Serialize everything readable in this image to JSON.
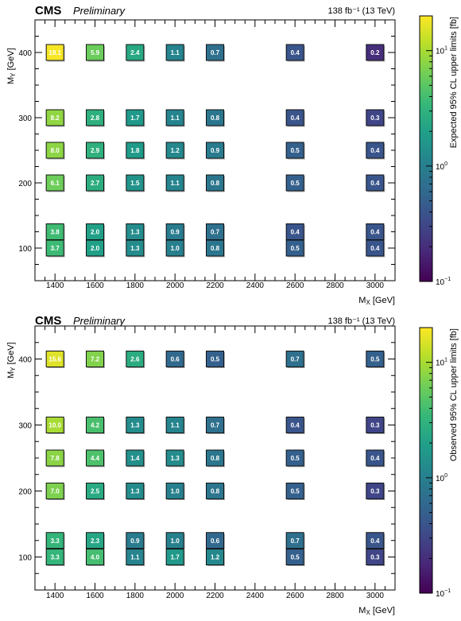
{
  "colors": {
    "viridis": [
      "#440154",
      "#482878",
      "#3e4a89",
      "#31688e",
      "#26828e",
      "#1f9e89",
      "#35b779",
      "#6ece58",
      "#b5de2b",
      "#fde725"
    ]
  },
  "chart_data": [
    {
      "type": "heatmap",
      "cms_label": "CMS",
      "prelim_label": "Preliminary",
      "lumi_label": "138 fb⁻¹ (13 TeV)",
      "xlabel": "M_X [GeV]",
      "ylabel": "M_Y [GeV]",
      "xlabel_main": "M",
      "xlabel_sub": "X",
      "xlabel_unit": " [GeV]",
      "ylabel_main": "M",
      "ylabel_sub": "Y",
      "ylabel_unit": " [GeV]",
      "xlim": [
        1300,
        3100
      ],
      "ylim": [
        50,
        450
      ],
      "xticks": [
        1400,
        1600,
        1800,
        2000,
        2200,
        2400,
        2600,
        2800,
        3000
      ],
      "yticks": [
        100,
        200,
        300,
        400
      ],
      "colorbar_title": "Expected 95% CL upper limits [fb]",
      "colorbar_log": true,
      "colorbar_range": [
        0.1,
        20
      ],
      "colorbar_ticks": [
        {
          "value": 10,
          "base": "10",
          "exp": "1"
        },
        {
          "value": 1,
          "base": "10",
          "exp": "0"
        },
        {
          "value": 0.1,
          "base": "10",
          "exp": "−1"
        }
      ],
      "points": [
        {
          "x": 1400,
          "y": 400,
          "value": 19.1,
          "label": "19.1"
        },
        {
          "x": 1600,
          "y": 400,
          "value": 5.9,
          "label": "5.9"
        },
        {
          "x": 1800,
          "y": 400,
          "value": 2.4,
          "label": "2.4"
        },
        {
          "x": 2000,
          "y": 400,
          "value": 1.1,
          "label": "1.1"
        },
        {
          "x": 2200,
          "y": 400,
          "value": 0.7,
          "label": "0.7"
        },
        {
          "x": 2600,
          "y": 400,
          "value": 0.4,
          "label": "0.4"
        },
        {
          "x": 3000,
          "y": 400,
          "value": 0.2,
          "label": "0.2"
        },
        {
          "x": 1400,
          "y": 300,
          "value": 8.2,
          "label": "8.2"
        },
        {
          "x": 1600,
          "y": 300,
          "value": 2.8,
          "label": "2.8"
        },
        {
          "x": 1800,
          "y": 300,
          "value": 1.7,
          "label": "1.7"
        },
        {
          "x": 2000,
          "y": 300,
          "value": 1.1,
          "label": "1.1"
        },
        {
          "x": 2200,
          "y": 300,
          "value": 0.8,
          "label": "0.8"
        },
        {
          "x": 2600,
          "y": 300,
          "value": 0.4,
          "label": "0.4"
        },
        {
          "x": 3000,
          "y": 300,
          "value": 0.3,
          "label": "0.3"
        },
        {
          "x": 1400,
          "y": 250,
          "value": 8.0,
          "label": "8.0"
        },
        {
          "x": 1600,
          "y": 250,
          "value": 2.9,
          "label": "2.9"
        },
        {
          "x": 1800,
          "y": 250,
          "value": 1.8,
          "label": "1.8"
        },
        {
          "x": 2000,
          "y": 250,
          "value": 1.2,
          "label": "1.2"
        },
        {
          "x": 2200,
          "y": 250,
          "value": 0.9,
          "label": "0.9"
        },
        {
          "x": 2600,
          "y": 250,
          "value": 0.5,
          "label": "0.5"
        },
        {
          "x": 3000,
          "y": 250,
          "value": 0.4,
          "label": "0.4"
        },
        {
          "x": 1400,
          "y": 200,
          "value": 6.1,
          "label": "6.1"
        },
        {
          "x": 1600,
          "y": 200,
          "value": 2.7,
          "label": "2.7"
        },
        {
          "x": 1800,
          "y": 200,
          "value": 1.5,
          "label": "1.5"
        },
        {
          "x": 2000,
          "y": 200,
          "value": 1.1,
          "label": "1.1"
        },
        {
          "x": 2200,
          "y": 200,
          "value": 0.8,
          "label": "0.8"
        },
        {
          "x": 2600,
          "y": 200,
          "value": 0.5,
          "label": "0.5"
        },
        {
          "x": 3000,
          "y": 200,
          "value": 0.4,
          "label": "0.4"
        },
        {
          "x": 1400,
          "y": 125,
          "value": 3.8,
          "label": "3.8"
        },
        {
          "x": 1600,
          "y": 125,
          "value": 2.0,
          "label": "2.0"
        },
        {
          "x": 1800,
          "y": 125,
          "value": 1.3,
          "label": "1.3"
        },
        {
          "x": 2000,
          "y": 125,
          "value": 0.9,
          "label": "0.9"
        },
        {
          "x": 2200,
          "y": 125,
          "value": 0.7,
          "label": "0.7"
        },
        {
          "x": 2600,
          "y": 125,
          "value": 0.4,
          "label": "0.4"
        },
        {
          "x": 3000,
          "y": 125,
          "value": 0.4,
          "label": "0.4"
        },
        {
          "x": 1400,
          "y": 100,
          "value": 3.7,
          "label": "3.7"
        },
        {
          "x": 1600,
          "y": 100,
          "value": 2.0,
          "label": "2.0"
        },
        {
          "x": 1800,
          "y": 100,
          "value": 1.3,
          "label": "1.3"
        },
        {
          "x": 2000,
          "y": 100,
          "value": 1.0,
          "label": "1.0"
        },
        {
          "x": 2200,
          "y": 100,
          "value": 0.8,
          "label": "0.8"
        },
        {
          "x": 2600,
          "y": 100,
          "value": 0.5,
          "label": "0.5"
        },
        {
          "x": 3000,
          "y": 100,
          "value": 0.4,
          "label": "0.4"
        }
      ]
    },
    {
      "type": "heatmap",
      "cms_label": "CMS",
      "prelim_label": "Preliminary",
      "lumi_label": "138 fb⁻¹ (13 TeV)",
      "xlabel": "M_X [GeV]",
      "ylabel": "M_Y [GeV]",
      "xlabel_main": "M",
      "xlabel_sub": "X",
      "xlabel_unit": " [GeV]",
      "ylabel_main": "M",
      "ylabel_sub": "Y",
      "ylabel_unit": " [GeV]",
      "xlim": [
        1300,
        3100
      ],
      "ylim": [
        50,
        450
      ],
      "xticks": [
        1400,
        1600,
        1800,
        2000,
        2200,
        2400,
        2600,
        2800,
        3000
      ],
      "yticks": [
        100,
        200,
        300,
        400
      ],
      "colorbar_title": "Observed 95% CL upper limits [fb]",
      "colorbar_log": true,
      "colorbar_range": [
        0.1,
        20
      ],
      "colorbar_ticks": [
        {
          "value": 10,
          "base": "10",
          "exp": "1"
        },
        {
          "value": 1,
          "base": "10",
          "exp": "0"
        },
        {
          "value": 0.1,
          "base": "10",
          "exp": "−1"
        }
      ],
      "points": [
        {
          "x": 1400,
          "y": 400,
          "value": 15.6,
          "label": "15.6"
        },
        {
          "x": 1600,
          "y": 400,
          "value": 7.2,
          "label": "7.2"
        },
        {
          "x": 1800,
          "y": 400,
          "value": 2.6,
          "label": "2.6"
        },
        {
          "x": 2000,
          "y": 400,
          "value": 0.6,
          "label": "0.6"
        },
        {
          "x": 2200,
          "y": 400,
          "value": 0.5,
          "label": "0.5"
        },
        {
          "x": 2600,
          "y": 400,
          "value": 0.7,
          "label": "0.7"
        },
        {
          "x": 3000,
          "y": 400,
          "value": 0.5,
          "label": "0.5"
        },
        {
          "x": 1400,
          "y": 300,
          "value": 10.0,
          "label": "10.0"
        },
        {
          "x": 1600,
          "y": 300,
          "value": 4.2,
          "label": "4.2"
        },
        {
          "x": 1800,
          "y": 300,
          "value": 1.3,
          "label": "1.3"
        },
        {
          "x": 2000,
          "y": 300,
          "value": 1.1,
          "label": "1.1"
        },
        {
          "x": 2200,
          "y": 300,
          "value": 0.7,
          "label": "0.7"
        },
        {
          "x": 2600,
          "y": 300,
          "value": 0.4,
          "label": "0.4"
        },
        {
          "x": 3000,
          "y": 300,
          "value": 0.3,
          "label": "0.3"
        },
        {
          "x": 1400,
          "y": 250,
          "value": 7.8,
          "label": "7.8"
        },
        {
          "x": 1600,
          "y": 250,
          "value": 4.4,
          "label": "4.4"
        },
        {
          "x": 1800,
          "y": 250,
          "value": 1.4,
          "label": "1.4"
        },
        {
          "x": 2000,
          "y": 250,
          "value": 1.3,
          "label": "1.3"
        },
        {
          "x": 2200,
          "y": 250,
          "value": 0.8,
          "label": "0.8"
        },
        {
          "x": 2600,
          "y": 250,
          "value": 0.5,
          "label": "0.5"
        },
        {
          "x": 3000,
          "y": 250,
          "value": 0.4,
          "label": "0.4"
        },
        {
          "x": 1400,
          "y": 200,
          "value": 7.0,
          "label": "7.0"
        },
        {
          "x": 1600,
          "y": 200,
          "value": 2.5,
          "label": "2.5"
        },
        {
          "x": 1800,
          "y": 200,
          "value": 1.3,
          "label": "1.3"
        },
        {
          "x": 2000,
          "y": 200,
          "value": 1.0,
          "label": "1.0"
        },
        {
          "x": 2200,
          "y": 200,
          "value": 0.8,
          "label": "0.8"
        },
        {
          "x": 2600,
          "y": 200,
          "value": 0.5,
          "label": "0.5"
        },
        {
          "x": 3000,
          "y": 200,
          "value": 0.3,
          "label": "0.3"
        },
        {
          "x": 1400,
          "y": 125,
          "value": 3.3,
          "label": "3.3"
        },
        {
          "x": 1600,
          "y": 125,
          "value": 2.3,
          "label": "2.3"
        },
        {
          "x": 1800,
          "y": 125,
          "value": 0.9,
          "label": "0.9"
        },
        {
          "x": 2000,
          "y": 125,
          "value": 1.0,
          "label": "1.0"
        },
        {
          "x": 2200,
          "y": 125,
          "value": 0.6,
          "label": "0.6"
        },
        {
          "x": 2600,
          "y": 125,
          "value": 0.7,
          "label": "0.7"
        },
        {
          "x": 3000,
          "y": 125,
          "value": 0.4,
          "label": "0.4"
        },
        {
          "x": 1400,
          "y": 100,
          "value": 3.3,
          "label": "3.3"
        },
        {
          "x": 1600,
          "y": 100,
          "value": 4.0,
          "label": "4.0"
        },
        {
          "x": 1800,
          "y": 100,
          "value": 1.1,
          "label": "1.1"
        },
        {
          "x": 2000,
          "y": 100,
          "value": 1.7,
          "label": "1.7"
        },
        {
          "x": 2200,
          "y": 100,
          "value": 1.2,
          "label": "1.2"
        },
        {
          "x": 2600,
          "y": 100,
          "value": 0.5,
          "label": "0.5"
        },
        {
          "x": 3000,
          "y": 100,
          "value": 0.3,
          "label": "0.3"
        }
      ]
    }
  ]
}
